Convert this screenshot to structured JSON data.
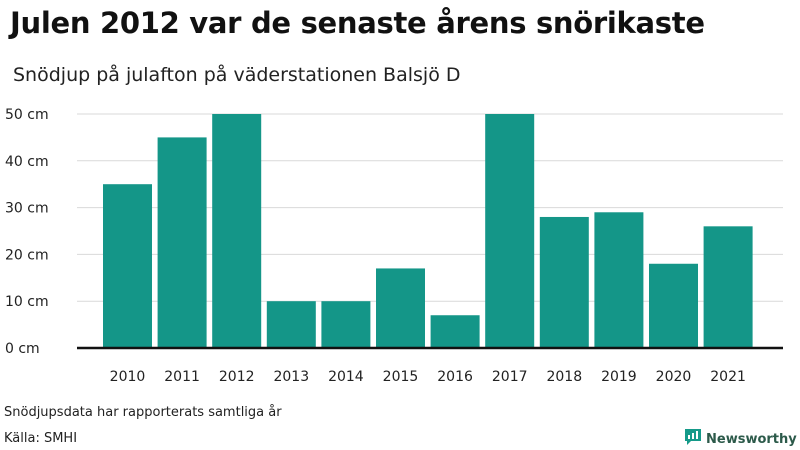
{
  "title": "Julen 2012 var de senaste årens snörikaste",
  "subtitle": "Snödjup på julafton på väderstationen Balsjö D",
  "footnote": "Snödjupsdata har rapporterats samtliga år",
  "source": "Källa: SMHI",
  "brand": "Newsworthy",
  "colors": {
    "bar": "#149688",
    "grid": "#d9d9d9",
    "axis": "#111111",
    "brand_icon": "#159a89"
  },
  "chart_data": {
    "type": "bar",
    "categories": [
      "2010",
      "2011",
      "2012",
      "2013",
      "2014",
      "2015",
      "2016",
      "2017",
      "2018",
      "2019",
      "2020",
      "2021"
    ],
    "values": [
      35,
      45,
      50,
      10,
      10,
      17,
      7,
      50,
      28,
      29,
      18,
      26
    ],
    "y_ticks": [
      0,
      10,
      20,
      30,
      40,
      50
    ],
    "y_tick_labels": [
      "0 cm",
      "10 cm",
      "20 cm",
      "30 cm",
      "40 cm",
      "50 cm"
    ],
    "ylim": [
      0,
      50
    ],
    "grid": true,
    "legend": false
  }
}
